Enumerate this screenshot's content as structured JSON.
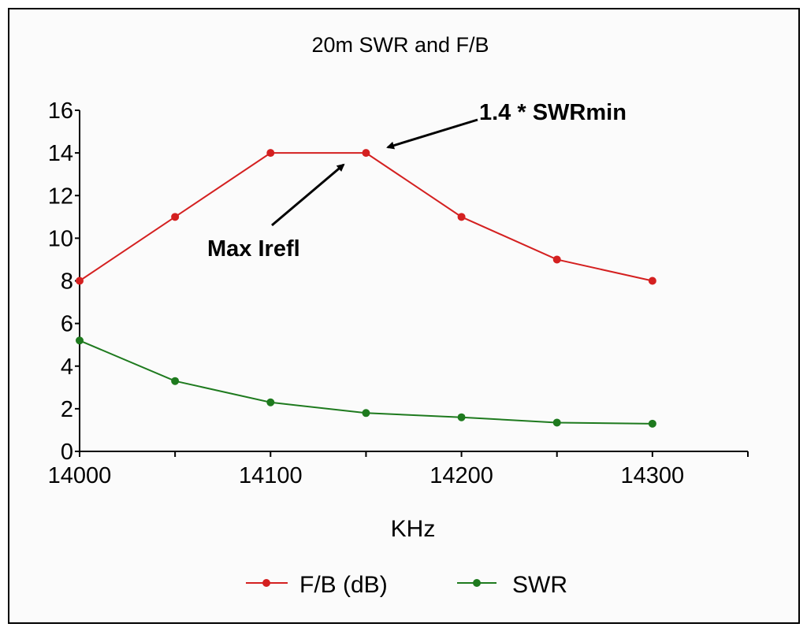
{
  "chart_data": {
    "type": "line",
    "title": "20m SWR and F/B",
    "xlabel": "KHz",
    "ylabel": "",
    "xlim": [
      14000,
      14350
    ],
    "ylim": [
      0,
      16
    ],
    "xticks": [
      14000,
      14100,
      14200,
      14300
    ],
    "xminor": [
      14050,
      14150,
      14250,
      14350
    ],
    "yticks": [
      0,
      2,
      4,
      6,
      8,
      10,
      12,
      14,
      16
    ],
    "grid": false,
    "legend": "bottom",
    "x": [
      14000,
      14050,
      14100,
      14150,
      14200,
      14250,
      14300
    ],
    "series": [
      {
        "name": "F/B (dB)",
        "color": "#d42020",
        "values": [
          8,
          11,
          14,
          14,
          11,
          9,
          8
        ]
      },
      {
        "name": "SWR",
        "color": "#1e7a1e",
        "values": [
          5.2,
          3.3,
          2.3,
          1.8,
          1.6,
          1.35,
          1.3
        ]
      }
    ],
    "annotations": [
      {
        "text": "1.4 * SWRmin",
        "x": 14150,
        "y": 14
      },
      {
        "text": "Max Irefl",
        "x": 14140,
        "y": 14
      }
    ]
  }
}
